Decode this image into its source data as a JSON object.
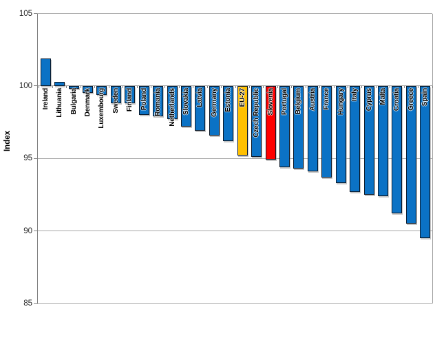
{
  "chart_data": {
    "type": "bar",
    "title": "",
    "ylabel": "Index",
    "xlabel": "",
    "ylim": [
      85,
      105
    ],
    "yticks": [
      105,
      100,
      95,
      90,
      85
    ],
    "baseline": 100,
    "grid": "horizontal-major",
    "legend": "none",
    "categories": [
      "Ireland",
      "Lithuania",
      "Bulgaria",
      "Denmark",
      "Luxembourg",
      "Sweden",
      "Finland",
      "Poland",
      "Romania",
      "Netherlands",
      "Slovakia",
      "Latvia",
      "Germany",
      "Estonia",
      "EU-27",
      "Czech Republic",
      "Slovenia",
      "Portugal",
      "Belgium",
      "Austria",
      "France",
      "Hungary",
      "Italy",
      "Cyprus",
      "Malta",
      "Croatia",
      "Greece",
      "Spain"
    ],
    "values": [
      101.9,
      100.3,
      99.8,
      99.5,
      99.4,
      98.8,
      98.8,
      98.0,
      97.9,
      97.7,
      97.2,
      96.9,
      96.6,
      96.2,
      95.2,
      95.1,
      94.9,
      94.4,
      94.3,
      94.1,
      93.7,
      93.3,
      92.7,
      92.5,
      92.4,
      91.2,
      90.5,
      89.5
    ],
    "bar_color_default": "#0B72C5",
    "bar_color_overrides": {
      "EU-27": "#FFC000",
      "Slovenia": "#FF0000"
    },
    "bar_border_color": "#0A1828",
    "gridline_color": "#A6A6A6",
    "axis_color": "#808080",
    "tick_label_color": "#262626",
    "category_label_color": "#000000"
  }
}
